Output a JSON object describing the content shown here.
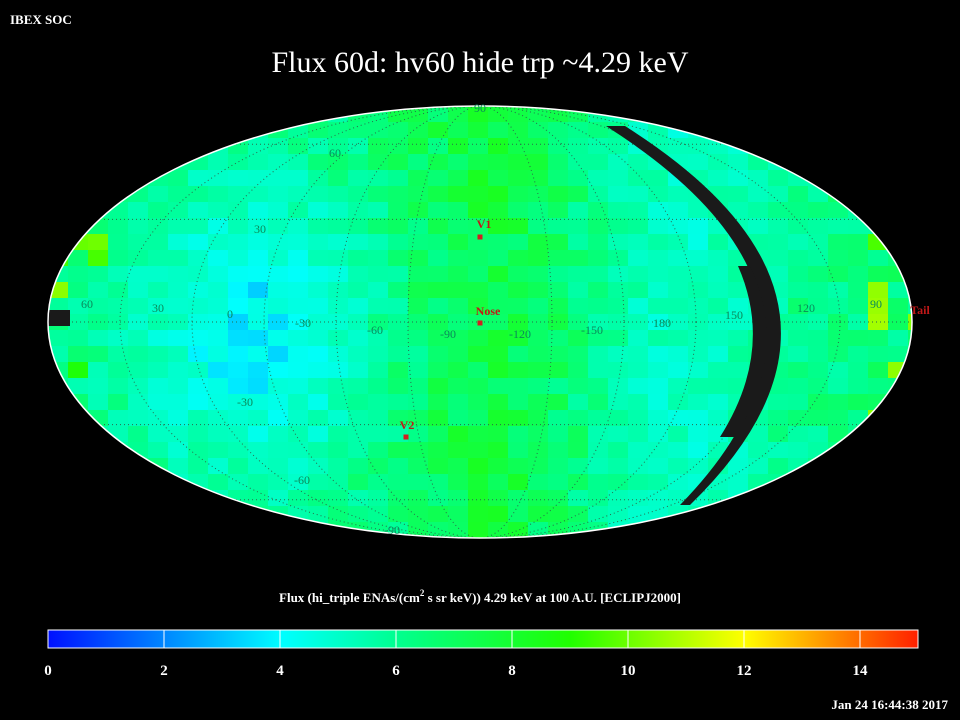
{
  "header": {
    "org": "IBEX SOC",
    "title": "Flux   60d: hv60 hide trp ~4.29 keV"
  },
  "map": {
    "longitude_labels": [
      "60",
      "30",
      "0",
      "-30",
      "-60",
      "-90",
      "-120",
      "-150",
      "180",
      "150",
      "120",
      "90"
    ],
    "latitude_labels": [
      "90",
      "60",
      "30",
      "-30",
      "-60",
      "-90"
    ],
    "markers": [
      "V1",
      "Nose",
      "V2",
      "Tail"
    ]
  },
  "colorbar": {
    "caption": {
      "before": "Flux (hi_triple ENAs/(cm",
      "superscript": "2",
      "after": " s sr keV))  4.29 keV at 100 A.U. [ECLIPJ2000]"
    },
    "range": [
      0,
      15
    ],
    "ticks": [
      0,
      2,
      4,
      6,
      8,
      10,
      12,
      14
    ]
  },
  "timestamp": "Jan 24 16:44:38 2017"
}
